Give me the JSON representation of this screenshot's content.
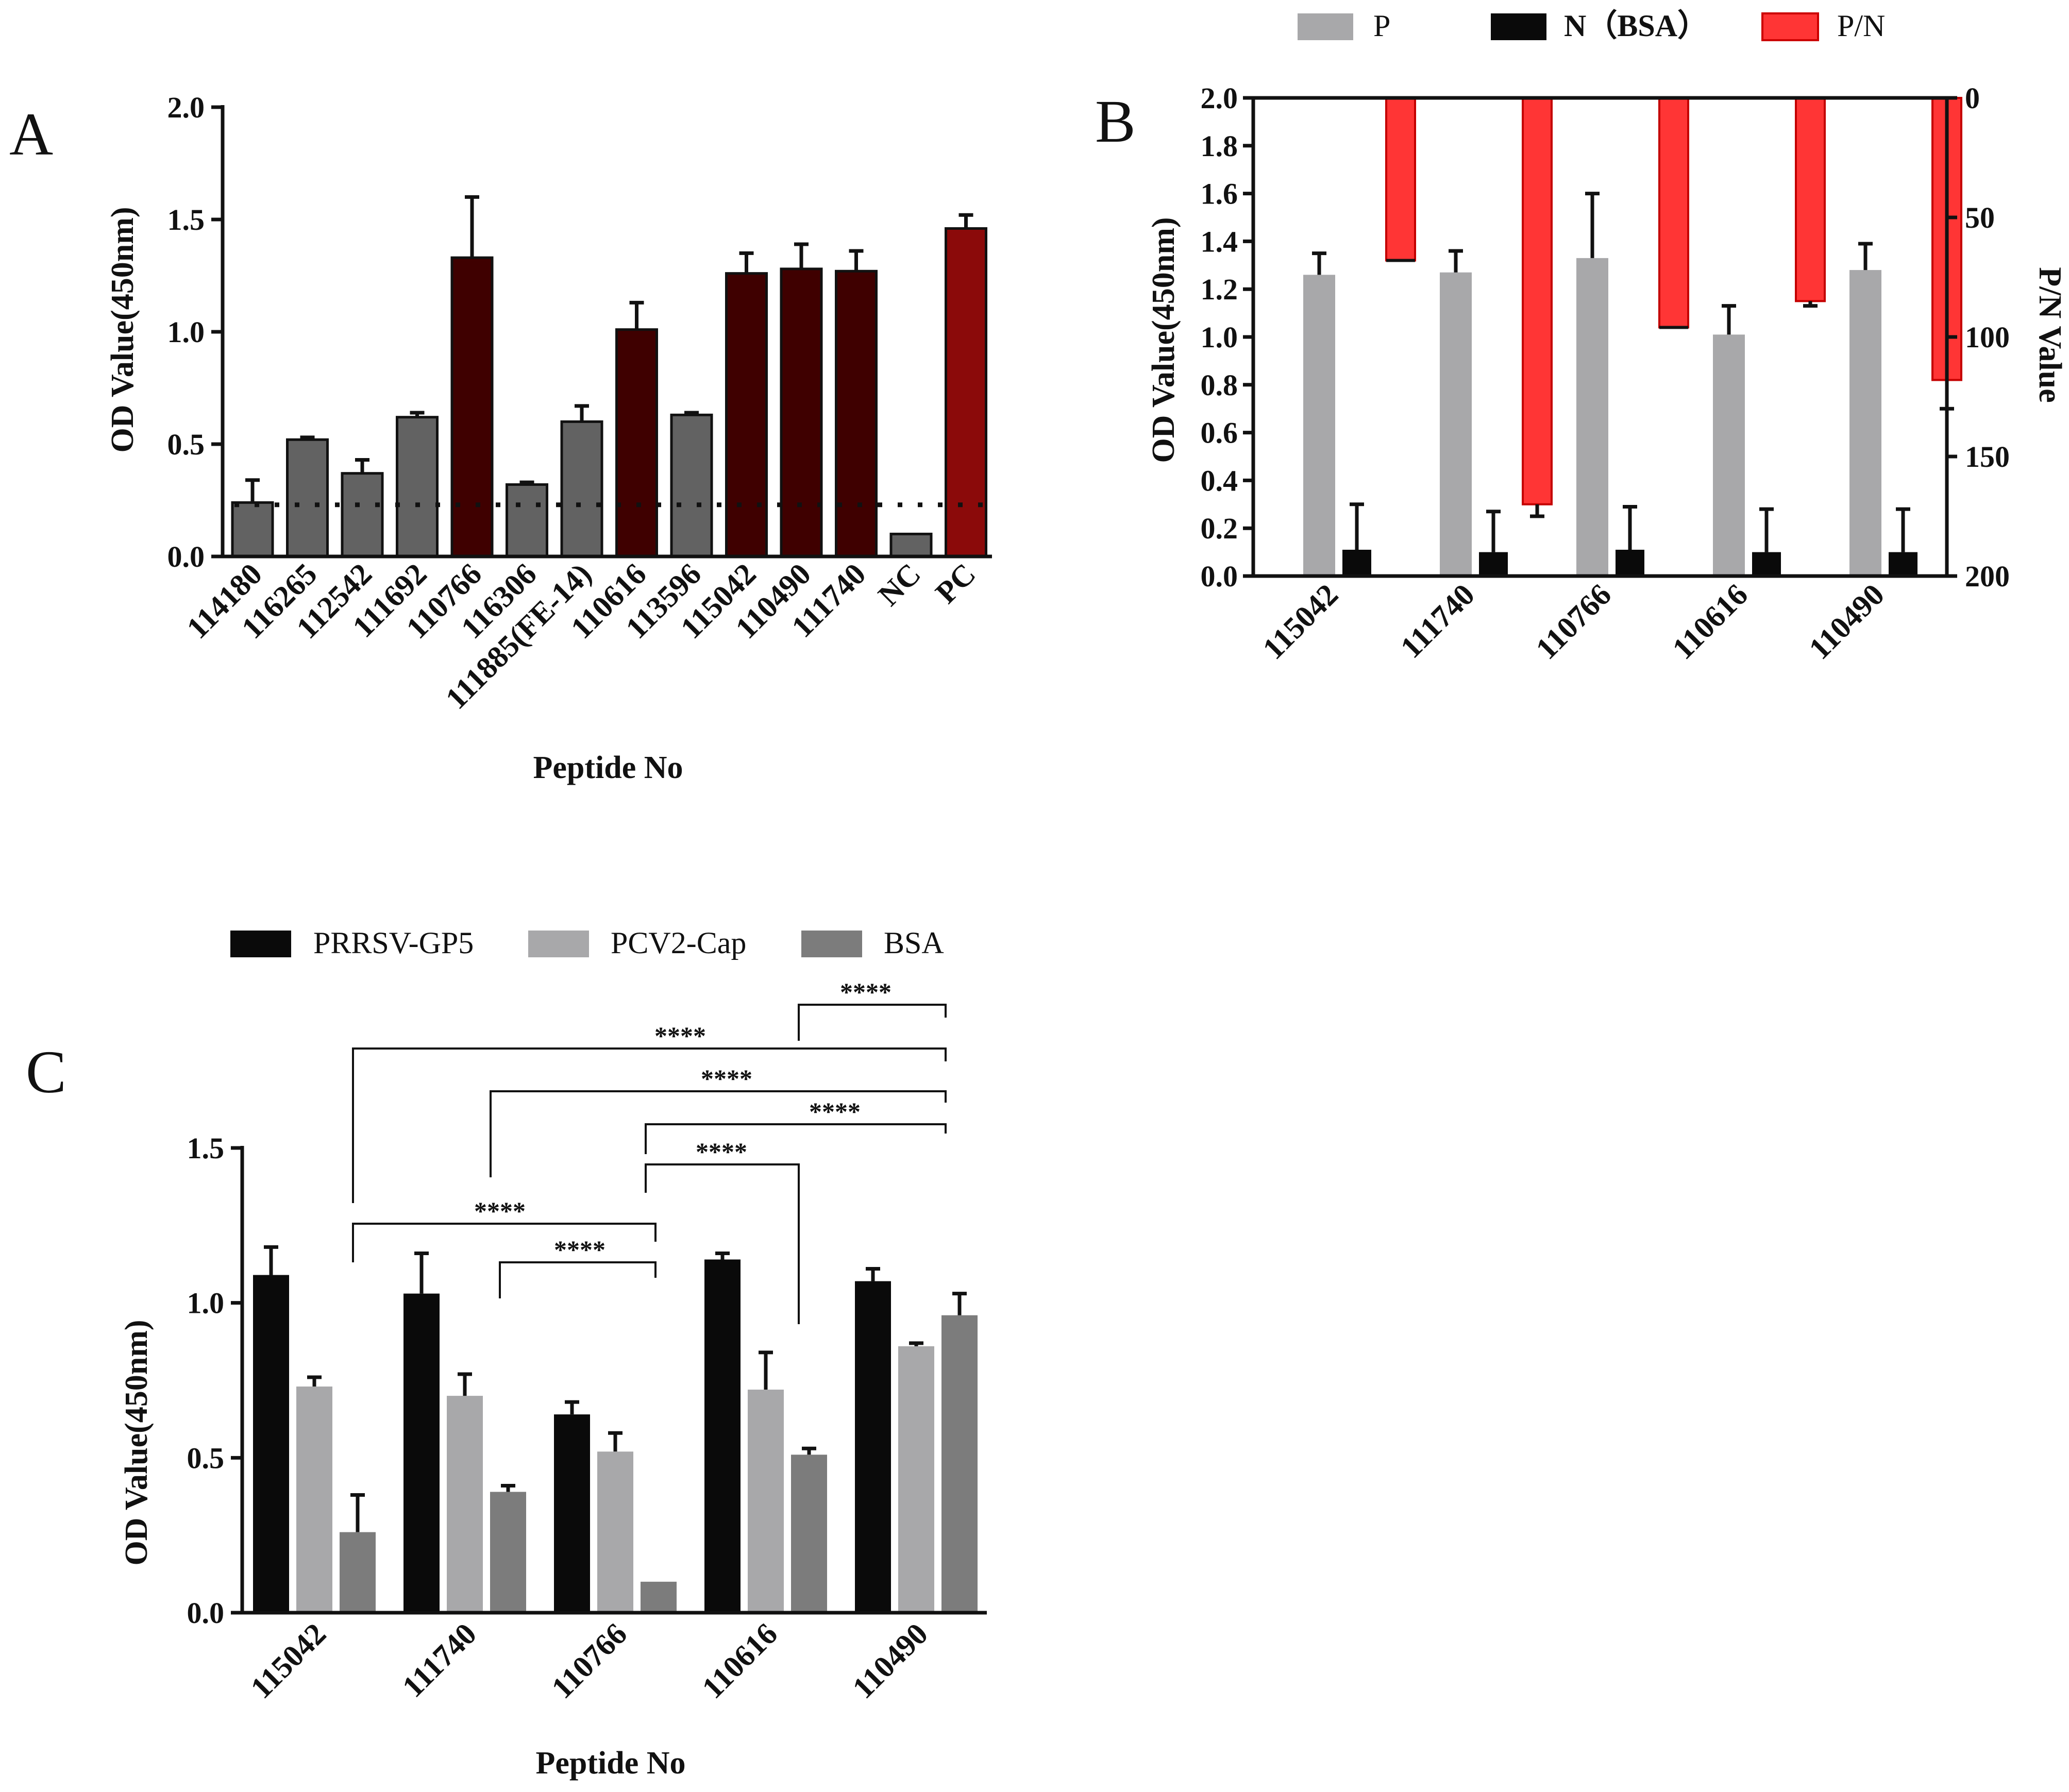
{
  "colors": {
    "gray_bar": "#626262",
    "dark_red": "#3f0000",
    "pc_red": "#8b0a0a",
    "p_gray": "#a8a8aa",
    "n_black": "#0a0a0a",
    "pn_red": "#ff3535",
    "gp5_black": "#0a0a0a",
    "cap_gray": "#a8a8aa",
    "bsa_gray": "#7c7c7c"
  },
  "chart_data": [
    {
      "panel": "A",
      "type": "bar",
      "title": "",
      "xlabel": "Peptide No",
      "ylabel": "OD Value(450nm)",
      "ylim": [
        0,
        2.0
      ],
      "yticks": [
        "0.0",
        "0.5",
        "1.0",
        "1.5",
        "2.0"
      ],
      "cutoff": 0.23,
      "categories": [
        "114180",
        "116265",
        "112542",
        "111692",
        "110766",
        "116306",
        "111885(FE-14)",
        "110616",
        "113596",
        "115042",
        "110490",
        "111740",
        "NC",
        "PC"
      ],
      "values": [
        0.24,
        0.52,
        0.37,
        0.62,
        1.33,
        0.32,
        0.6,
        1.01,
        0.63,
        1.26,
        1.28,
        1.27,
        0.1,
        1.46
      ],
      "errors": [
        0.1,
        0.01,
        0.06,
        0.02,
        0.27,
        0.01,
        0.07,
        0.12,
        0.01,
        0.09,
        0.11,
        0.09,
        0.0,
        0.06
      ],
      "bar_colors": [
        "gray_bar",
        "gray_bar",
        "gray_bar",
        "gray_bar",
        "dark_red",
        "gray_bar",
        "gray_bar",
        "dark_red",
        "gray_bar",
        "dark_red",
        "dark_red",
        "dark_red",
        "gray_bar",
        "pc_red"
      ]
    },
    {
      "panel": "B",
      "type": "bar",
      "title": "",
      "xlabel": "",
      "ylabel": "OD Value(450nm)",
      "y2label": "P/N Value",
      "ylim": [
        0,
        2.0
      ],
      "y2lim": [
        0,
        200
      ],
      "y2_inverted": true,
      "yticks": [
        "0.0",
        "0.2",
        "0.4",
        "0.6",
        "0.8",
        "1.0",
        "1.2",
        "1.4",
        "1.6",
        "1.8",
        "2.0"
      ],
      "y2ticks": [
        "0",
        "50",
        "100",
        "150",
        "200"
      ],
      "categories": [
        "115042",
        "111740",
        "110766",
        "110616",
        "110490"
      ],
      "legend": [
        "P",
        "N（BSA）",
        "P/N"
      ],
      "series": [
        {
          "name": "P",
          "axis": "left",
          "values": [
            1.26,
            1.27,
            1.33,
            1.01,
            1.28
          ],
          "errors": [
            0.09,
            0.09,
            0.27,
            0.12,
            0.11
          ]
        },
        {
          "name": "N（BSA）",
          "axis": "left",
          "values": [
            0.11,
            0.1,
            0.11,
            0.1,
            0.1
          ],
          "errors": [
            0.19,
            0.17,
            0.18,
            0.18,
            0.18
          ]
        },
        {
          "name": "P/N",
          "axis": "right",
          "values": [
            68,
            170,
            96,
            85,
            118
          ],
          "errors": [
            0,
            5,
            0,
            2,
            12
          ]
        }
      ]
    },
    {
      "panel": "C",
      "type": "bar",
      "title": "",
      "xlabel": "Peptide No",
      "ylabel": "OD Value(450nm)",
      "ylim": [
        0,
        1.5
      ],
      "yticks": [
        "0.0",
        "0.5",
        "1.0",
        "1.5"
      ],
      "categories": [
        "115042",
        "111740",
        "110766",
        "110616",
        "110490"
      ],
      "legend": [
        "PRRSV-GP5",
        "PCV2-Cap",
        "BSA"
      ],
      "series": [
        {
          "name": "PRRSV-GP5",
          "values": [
            1.09,
            1.03,
            0.64,
            1.14,
            1.07
          ],
          "errors": [
            0.09,
            0.13,
            0.04,
            0.02,
            0.04
          ]
        },
        {
          "name": "PCV2-Cap",
          "values": [
            0.73,
            0.7,
            0.52,
            0.72,
            0.86
          ],
          "errors": [
            0.03,
            0.07,
            0.06,
            0.12,
            0.01
          ]
        },
        {
          "name": "BSA",
          "values": [
            0.26,
            0.39,
            0.1,
            0.51,
            0.96
          ],
          "errors": [
            0.12,
            0.02,
            0.0,
            0.02,
            0.07
          ]
        }
      ],
      "significance": [
        "****",
        "****",
        "****",
        "****",
        "****",
        "****",
        "****"
      ]
    }
  ]
}
